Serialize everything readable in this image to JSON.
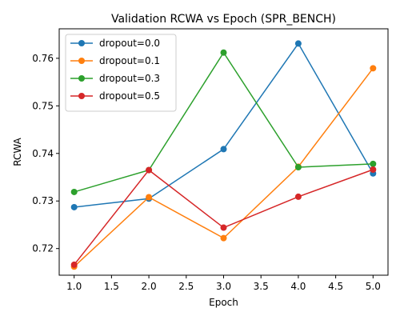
{
  "chart_data": {
    "type": "line",
    "title": "Validation RCWA vs Epoch (SPR_BENCH)",
    "xlabel": "Epoch",
    "ylabel": "RCWA",
    "xlim": [
      0.8,
      5.2
    ],
    "ylim": [
      0.7144,
      0.7662
    ],
    "x_ticks": [
      1.0,
      1.5,
      2.0,
      2.5,
      3.0,
      3.5,
      4.0,
      4.5,
      5.0
    ],
    "x_tick_labels": [
      "1.0",
      "1.5",
      "2.0",
      "2.5",
      "3.0",
      "3.5",
      "4.0",
      "4.5",
      "5.0"
    ],
    "y_ticks": [
      0.72,
      0.73,
      0.74,
      0.75,
      0.76
    ],
    "y_tick_labels": [
      "0.72",
      "0.73",
      "0.74",
      "0.75",
      "0.76"
    ],
    "grid": false,
    "legend_position": "upper-left",
    "x": [
      1,
      2,
      3,
      4,
      5
    ],
    "series": [
      {
        "name": "dropout=0.0",
        "color": "#1f77b4",
        "values": [
          0.7287,
          0.7305,
          0.7409,
          0.7631,
          0.7358
        ]
      },
      {
        "name": "dropout=0.1",
        "color": "#ff7f0e",
        "values": [
          0.7162,
          0.7308,
          0.7222,
          0.7372,
          0.7579
        ]
      },
      {
        "name": "dropout=0.3",
        "color": "#2ca02c",
        "values": [
          0.7319,
          0.7365,
          0.7612,
          0.7371,
          0.7378
        ]
      },
      {
        "name": "dropout=0.5",
        "color": "#d62728",
        "values": [
          0.7166,
          0.7365,
          0.7244,
          0.7309,
          0.7366
        ]
      }
    ]
  }
}
